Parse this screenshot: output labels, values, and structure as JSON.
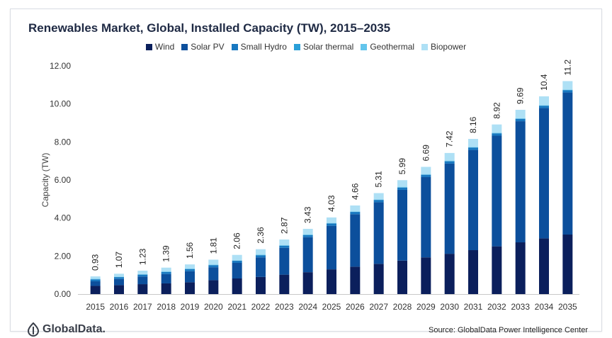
{
  "title": "Renewables Market, Global, Installed Capacity (TW), 2015–2035",
  "source": "Source: GlobalData Power Intelligence Center",
  "logo_text": "GlobalData.",
  "colors": {
    "Wind": "#0b1f5c",
    "Solar PV": "#0c4f9c",
    "Small Hydro": "#1878c0",
    "Solar thermal": "#2a9fd8",
    "Geothermal": "#63c5ec",
    "Biopower": "#aee0f5"
  },
  "chart_data": {
    "type": "bar",
    "stacked": true,
    "title": "Renewables Market, Global, Installed Capacity (TW), 2015–2035",
    "xlabel": "",
    "ylabel": "Capacity (TW)",
    "ylim": [
      0,
      12
    ],
    "yticks": [
      "0.00",
      "2.00",
      "4.00",
      "6.00",
      "8.00",
      "10.00",
      "12.00"
    ],
    "grid": false,
    "legend_position": "top",
    "categories": [
      "2015",
      "2016",
      "2017",
      "2018",
      "2019",
      "2020",
      "2021",
      "2022",
      "2023",
      "2024",
      "2025",
      "2026",
      "2027",
      "2028",
      "2029",
      "2030",
      "2031",
      "2032",
      "2033",
      "2034",
      "2035"
    ],
    "totals_labels": [
      "0.93",
      "1.07",
      "1.23",
      "1.39",
      "1.56",
      "1.81",
      "2.06",
      "2.36",
      "2.87",
      "3.43",
      "4.03",
      "4.66",
      "5.31",
      "5.99",
      "6.69",
      "7.42",
      "8.16",
      "8.92",
      "9.69",
      "10.4",
      "11.2"
    ],
    "series": [
      {
        "name": "Wind",
        "values": [
          0.43,
          0.47,
          0.52,
          0.56,
          0.62,
          0.73,
          0.82,
          0.9,
          1.02,
          1.15,
          1.3,
          1.44,
          1.59,
          1.76,
          1.93,
          2.12,
          2.31,
          2.51,
          2.72,
          2.93,
          3.13
        ]
      },
      {
        "name": "Solar PV",
        "values": [
          0.24,
          0.32,
          0.4,
          0.49,
          0.58,
          0.68,
          0.82,
          1.03,
          1.41,
          1.84,
          2.29,
          2.76,
          3.24,
          3.72,
          4.22,
          4.74,
          5.27,
          5.82,
          6.37,
          6.85,
          7.47
        ]
      },
      {
        "name": "Small Hydro",
        "values": [
          0.1,
          0.1,
          0.1,
          0.11,
          0.11,
          0.11,
          0.11,
          0.11,
          0.11,
          0.11,
          0.12,
          0.12,
          0.12,
          0.12,
          0.12,
          0.12,
          0.12,
          0.12,
          0.12,
          0.12,
          0.12
        ]
      },
      {
        "name": "Solar thermal",
        "values": [
          0.01,
          0.01,
          0.01,
          0.01,
          0.01,
          0.01,
          0.01,
          0.01,
          0.01,
          0.01,
          0.01,
          0.01,
          0.01,
          0.02,
          0.02,
          0.02,
          0.02,
          0.02,
          0.02,
          0.02,
          0.02
        ]
      },
      {
        "name": "Geothermal",
        "values": [
          0.02,
          0.02,
          0.02,
          0.02,
          0.02,
          0.02,
          0.02,
          0.02,
          0.02,
          0.02,
          0.02,
          0.02,
          0.02,
          0.02,
          0.02,
          0.02,
          0.02,
          0.02,
          0.02,
          0.02,
          0.02
        ]
      },
      {
        "name": "Biopower",
        "values": [
          0.13,
          0.15,
          0.18,
          0.2,
          0.22,
          0.26,
          0.28,
          0.29,
          0.3,
          0.3,
          0.29,
          0.31,
          0.33,
          0.35,
          0.38,
          0.4,
          0.42,
          0.43,
          0.44,
          0.46,
          0.44
        ]
      }
    ]
  }
}
